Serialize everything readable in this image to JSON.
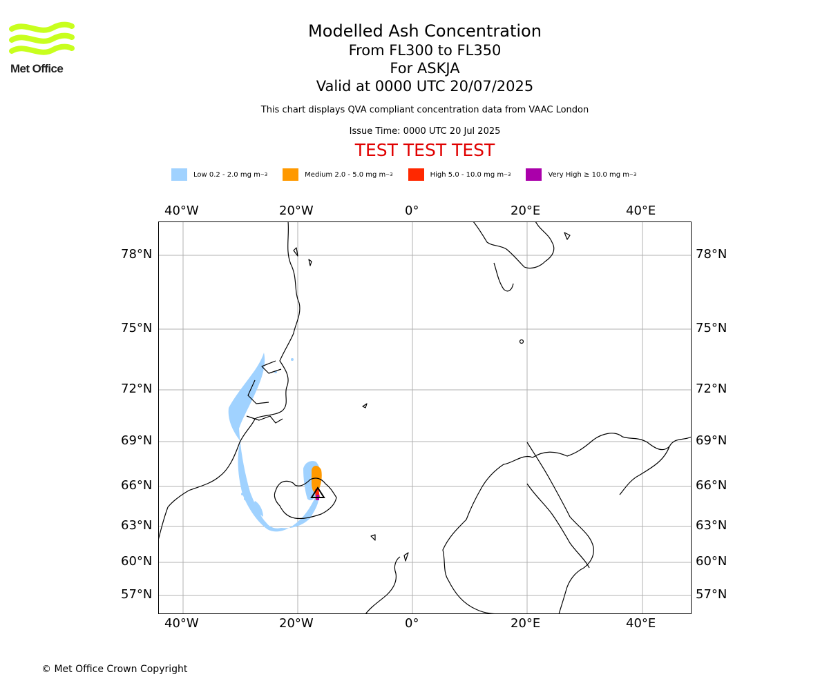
{
  "logo": {
    "text": "Met Office",
    "color": "#c8ff1e"
  },
  "title": {
    "line1": "Modelled Ash Concentration",
    "line2": "From FL300 to FL350",
    "line3": "For ASKJA",
    "line4": "Valid at 0000 UTC 20/07/2025"
  },
  "description": "This chart displays QVA compliant concentration data from VAAC London",
  "issue_time": "Issue Time: 0000 UTC 20 Jul 2025",
  "test_banner": "TEST TEST TEST",
  "legend": [
    {
      "label": "Low 0.2 - 2.0 mg m",
      "sup": "−3",
      "color": "#a0d2ff"
    },
    {
      "label": "Medium 2.0 - 5.0 mg m",
      "sup": "−3",
      "color": "#ff9900"
    },
    {
      "label": "High 5.0 - 10.0 mg m",
      "sup": "−3",
      "color": "#ff2800"
    },
    {
      "label": "Very High  ≥  10.0 mg m",
      "sup": "−3",
      "color": "#aa00aa"
    }
  ],
  "axes": {
    "lon_labels": [
      "40°W",
      "20°W",
      "0°",
      "20°E",
      "40°E"
    ],
    "lat_labels": [
      "78°N",
      "75°N",
      "72°N",
      "69°N",
      "66°N",
      "63°N",
      "60°N",
      "57°N"
    ]
  },
  "copyright": "© Met Office Crown Copyright"
}
